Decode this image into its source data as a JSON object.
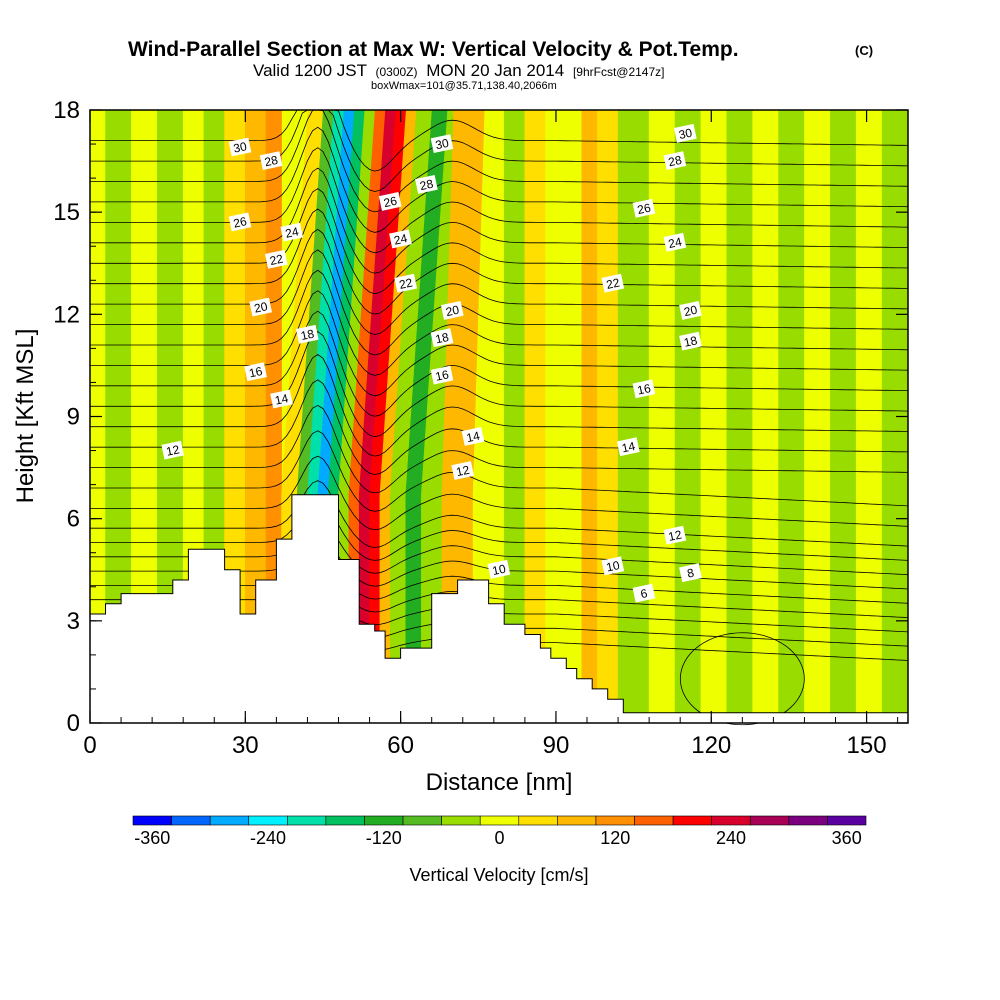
{
  "chart_data": {
    "type": "heatmap",
    "title": "Wind-Parallel Section at Max W: Vertical Velocity & Pot.Temp.",
    "title_mark": "(C)",
    "subtitle_parts": {
      "valid": "Valid 1200 JST",
      "utc": "(0300Z)",
      "date": "MON 20 Jan 2014",
      "forecast": "[9hrFcst@2147z]"
    },
    "box_info": "boxWmax=101@35.71,138.40,2066m",
    "xlabel": "Distance [nm]",
    "ylabel": "Height [Kft MSL]",
    "xlim": [
      0,
      158
    ],
    "ylim": [
      0,
      18
    ],
    "x_ticks": [
      0,
      30,
      60,
      90,
      120,
      150
    ],
    "y_ticks": [
      0,
      3,
      6,
      9,
      12,
      15,
      18
    ],
    "colorbar": {
      "title": "Vertical Velocity [cm/s]",
      "ticks": [
        -360,
        -240,
        -120,
        0,
        120,
        240,
        360
      ],
      "levels": [
        -380,
        -340,
        -300,
        -260,
        -220,
        -180,
        -140,
        -100,
        -60,
        -20,
        20,
        60,
        100,
        140,
        180,
        220,
        260,
        300,
        340,
        380
      ],
      "colors": [
        "#0000ff",
        "#0066ff",
        "#00aaff",
        "#00f0ff",
        "#00e0a8",
        "#00c060",
        "#22ad22",
        "#55bb22",
        "#99dd00",
        "#eeff00",
        "#ffdf00",
        "#ffb800",
        "#ff9000",
        "#ff6000",
        "#ff0000",
        "#d8002c",
        "#a80055",
        "#7a0080",
        "#5a00a0"
      ]
    },
    "velocity_bands": [
      {
        "x": 0,
        "w": -5
      },
      {
        "x": 3,
        "w": -40
      },
      {
        "x": 8,
        "w": 10
      },
      {
        "x": 13,
        "w": -30
      },
      {
        "x": 18,
        "w": 10
      },
      {
        "x": 22,
        "w": -50
      },
      {
        "x": 26,
        "w": 25
      },
      {
        "x": 30,
        "w": 60
      },
      {
        "x": 34,
        "w": 110
      },
      {
        "x": 37,
        "w": 40
      },
      {
        "x": 40,
        "w": -80
      },
      {
        "x": 42,
        "w": -200
      },
      {
        "x": 44,
        "w": -300
      },
      {
        "x": 46,
        "w": -180
      },
      {
        "x": 48,
        "w": -30
      },
      {
        "x": 50,
        "w": 150
      },
      {
        "x": 52,
        "w": 250
      },
      {
        "x": 54,
        "w": 190
      },
      {
        "x": 56,
        "w": 60
      },
      {
        "x": 58,
        "w": -60
      },
      {
        "x": 61,
        "w": -110
      },
      {
        "x": 64,
        "w": -40
      },
      {
        "x": 68,
        "w": 90
      },
      {
        "x": 71,
        "w": 60
      },
      {
        "x": 74,
        "w": -20
      },
      {
        "x": 77,
        "w": 10
      },
      {
        "x": 80,
        "w": -40
      },
      {
        "x": 84,
        "w": 30
      },
      {
        "x": 88,
        "w": -20
      },
      {
        "x": 92,
        "w": 10
      },
      {
        "x": 95,
        "w": 70
      },
      {
        "x": 98,
        "w": 20
      },
      {
        "x": 102,
        "w": -30
      },
      {
        "x": 108,
        "w": 0
      },
      {
        "x": 113,
        "w": -40
      },
      {
        "x": 118,
        "w": 0
      },
      {
        "x": 123,
        "w": -30
      },
      {
        "x": 128,
        "w": -10
      },
      {
        "x": 133,
        "w": -45
      },
      {
        "x": 138,
        "w": -5
      },
      {
        "x": 143,
        "w": -30
      },
      {
        "x": 148,
        "w": 0
      },
      {
        "x": 153,
        "w": -25
      },
      {
        "x": 158,
        "w": 0
      }
    ],
    "terrain": [
      [
        0,
        3.2
      ],
      [
        3,
        3.2
      ],
      [
        3,
        3.5
      ],
      [
        6,
        3.5
      ],
      [
        6,
        3.8
      ],
      [
        16,
        3.8
      ],
      [
        16,
        4.2
      ],
      [
        19,
        4.2
      ],
      [
        19,
        5.1
      ],
      [
        26,
        5.1
      ],
      [
        26,
        4.5
      ],
      [
        29,
        4.5
      ],
      [
        29,
        3.2
      ],
      [
        32,
        3.2
      ],
      [
        32,
        4.2
      ],
      [
        36,
        4.2
      ],
      [
        36,
        5.4
      ],
      [
        39,
        5.4
      ],
      [
        39,
        6.7
      ],
      [
        48,
        6.7
      ],
      [
        48,
        4.8
      ],
      [
        52,
        4.8
      ],
      [
        52,
        2.9
      ],
      [
        55,
        2.9
      ],
      [
        55,
        2.7
      ],
      [
        57,
        2.7
      ],
      [
        57,
        1.9
      ],
      [
        60,
        1.9
      ],
      [
        60,
        2.2
      ],
      [
        66,
        2.2
      ],
      [
        66,
        3.8
      ],
      [
        71,
        3.8
      ],
      [
        71,
        4.2
      ],
      [
        77,
        4.2
      ],
      [
        77,
        3.5
      ],
      [
        80,
        3.5
      ],
      [
        80,
        2.9
      ],
      [
        84,
        2.9
      ],
      [
        84,
        2.6
      ],
      [
        87,
        2.6
      ],
      [
        87,
        2.2
      ],
      [
        89,
        2.2
      ],
      [
        89,
        1.9
      ],
      [
        92,
        1.9
      ],
      [
        92,
        1.6
      ],
      [
        94,
        1.6
      ],
      [
        94,
        1.3
      ],
      [
        97,
        1.3
      ],
      [
        97,
        1.0
      ],
      [
        100,
        1.0
      ],
      [
        100,
        0.7
      ],
      [
        103,
        0.7
      ],
      [
        103,
        0.3
      ],
      [
        158,
        0.3
      ]
    ],
    "contour_labels": [
      {
        "text": "30",
        "x": 29,
        "y": 16.9
      },
      {
        "text": "28",
        "x": 35,
        "y": 16.5
      },
      {
        "text": "26",
        "x": 29,
        "y": 14.7
      },
      {
        "text": "24",
        "x": 39,
        "y": 14.4
      },
      {
        "text": "22",
        "x": 36,
        "y": 13.6
      },
      {
        "text": "20",
        "x": 33,
        "y": 12.2
      },
      {
        "text": "18",
        "x": 42,
        "y": 11.4
      },
      {
        "text": "16",
        "x": 32,
        "y": 10.3
      },
      {
        "text": "14",
        "x": 37,
        "y": 9.5
      },
      {
        "text": "12",
        "x": 16,
        "y": 8.0
      },
      {
        "text": "30",
        "x": 68,
        "y": 17.0
      },
      {
        "text": "28",
        "x": 65,
        "y": 15.8
      },
      {
        "text": "26",
        "x": 58,
        "y": 15.3
      },
      {
        "text": "24",
        "x": 60,
        "y": 14.2
      },
      {
        "text": "22",
        "x": 61,
        "y": 12.9
      },
      {
        "text": "20",
        "x": 70,
        "y": 12.1
      },
      {
        "text": "18",
        "x": 68,
        "y": 11.3
      },
      {
        "text": "16",
        "x": 68,
        "y": 10.2
      },
      {
        "text": "14",
        "x": 74,
        "y": 8.4
      },
      {
        "text": "12",
        "x": 72,
        "y": 7.4
      },
      {
        "text": "10",
        "x": 79,
        "y": 4.5
      },
      {
        "text": "30",
        "x": 115,
        "y": 17.3
      },
      {
        "text": "28",
        "x": 113,
        "y": 16.5
      },
      {
        "text": "26",
        "x": 107,
        "y": 15.1
      },
      {
        "text": "24",
        "x": 113,
        "y": 14.1
      },
      {
        "text": "22",
        "x": 101,
        "y": 12.9
      },
      {
        "text": "20",
        "x": 116,
        "y": 12.1
      },
      {
        "text": "18",
        "x": 116,
        "y": 11.2
      },
      {
        "text": "16",
        "x": 107,
        "y": 9.8
      },
      {
        "text": "14",
        "x": 104,
        "y": 8.1
      },
      {
        "text": "12",
        "x": 113,
        "y": 5.5
      },
      {
        "text": "10",
        "x": 101,
        "y": 4.6
      },
      {
        "text": "8",
        "x": 116,
        "y": 4.4
      },
      {
        "text": "6",
        "x": 107,
        "y": 3.8
      }
    ]
  }
}
